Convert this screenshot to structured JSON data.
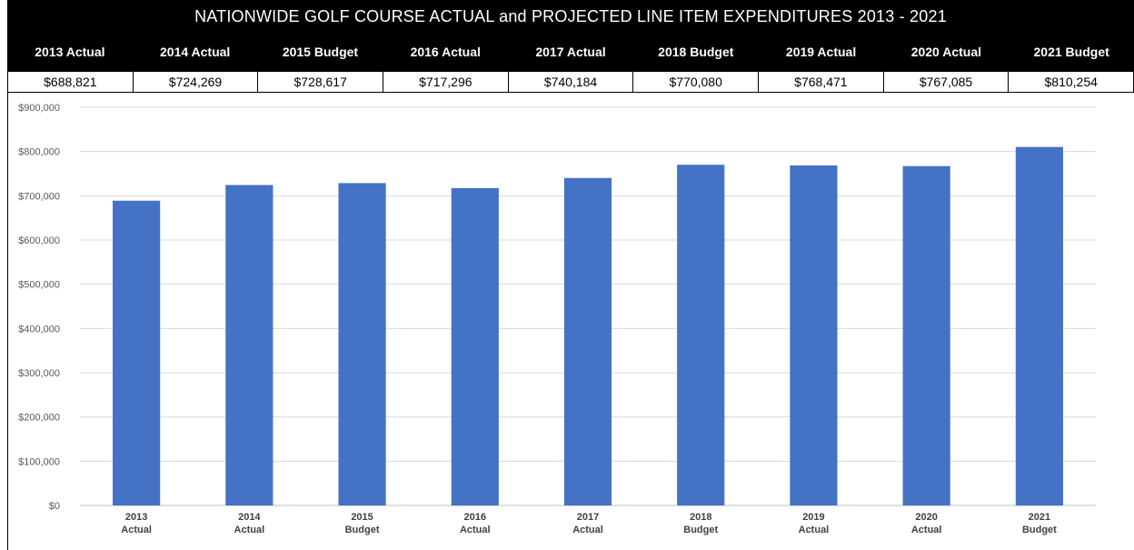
{
  "title": "NATIONWIDE GOLF COURSE ACTUAL and PROJECTED LINE ITEM EXPENDITURES 2013 - 2021",
  "table": {
    "headers": [
      "2013 Actual",
      "2014 Actual",
      "2015 Budget",
      "2016 Actual",
      "2017 Actual",
      "2018 Budget",
      "2019 Actual",
      "2020 Actual",
      "2021 Budget"
    ],
    "values": [
      "$688,821",
      "$724,269",
      "$728,617",
      "$717,296",
      "$740,184",
      "$770,080",
      "$768,471",
      "$767,085",
      "$810,254"
    ]
  },
  "colors": {
    "bar": "#4472C4",
    "grid": "#D9D9D9",
    "header_bg": "#000000"
  },
  "chart_data": {
    "type": "bar",
    "categories": [
      [
        "2013",
        "Actual"
      ],
      [
        "2014",
        "Actual"
      ],
      [
        "2015",
        "Budget"
      ],
      [
        "2016",
        "Actual"
      ],
      [
        "2017",
        "Actual"
      ],
      [
        "2018",
        "Budget"
      ],
      [
        "2019",
        "Actual"
      ],
      [
        "2020",
        "Actual"
      ],
      [
        "2021",
        "Budget"
      ]
    ],
    "values": [
      688821,
      724269,
      728617,
      717296,
      740184,
      770080,
      768471,
      767085,
      810254
    ],
    "ylim": [
      0,
      900000
    ],
    "yticks": [
      0,
      100000,
      200000,
      300000,
      400000,
      500000,
      600000,
      700000,
      800000,
      900000
    ],
    "ytick_labels": [
      "$0",
      "$100,000",
      "$200,000",
      "$300,000",
      "$400,000",
      "$500,000",
      "$600,000",
      "$700,000",
      "$800,000",
      "$900,000"
    ],
    "grid": true,
    "legend": "none"
  }
}
